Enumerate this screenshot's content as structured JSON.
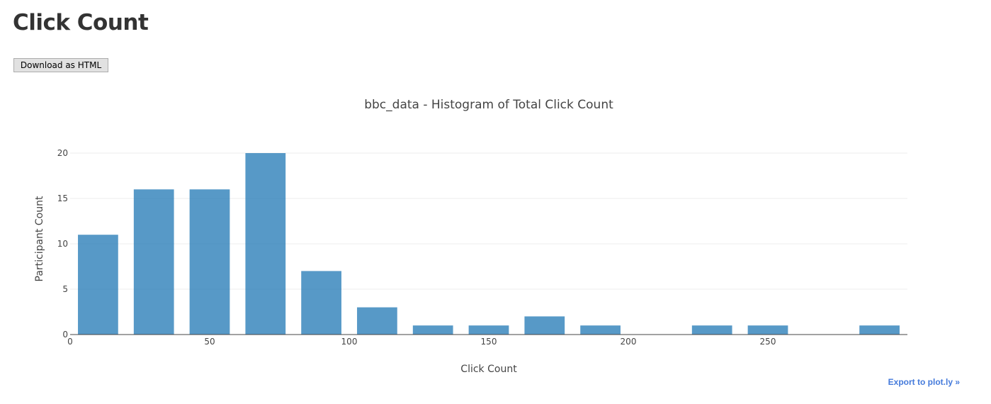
{
  "page": {
    "title": "Click Count",
    "download_label": "Download as HTML",
    "export_label": "Export to plot.ly »"
  },
  "chart_data": {
    "type": "bar",
    "title": "bbc_data - Histogram of Total Click Count",
    "xlabel": "Click Count",
    "ylabel": "Participant Count",
    "bin_width": 20,
    "bin_starts": [
      0,
      20,
      40,
      60,
      80,
      100,
      120,
      140,
      160,
      180,
      200,
      220,
      240,
      260,
      280
    ],
    "values": [
      11,
      16,
      16,
      20,
      7,
      3,
      1,
      1,
      2,
      1,
      0,
      1,
      1,
      0,
      1
    ],
    "xlim": [
      0,
      300
    ],
    "ylim": [
      0,
      20
    ],
    "xticks": [
      0,
      50,
      100,
      150,
      200,
      250
    ],
    "yticks": [
      0,
      5,
      10,
      15,
      20
    ],
    "grid": true,
    "bar_color": "#1f77b4",
    "bar_opacity": 0.75
  }
}
